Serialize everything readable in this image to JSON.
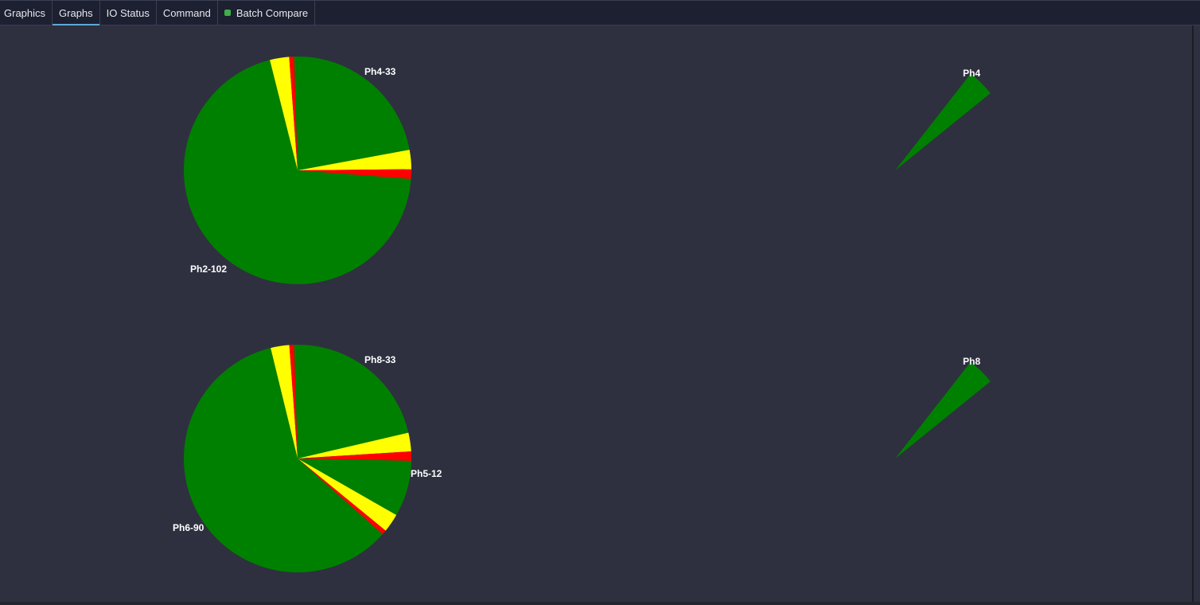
{
  "tabs": [
    {
      "label": "Graphics",
      "active": false
    },
    {
      "label": "Graphs",
      "active": true
    },
    {
      "label": "IO Status",
      "active": false
    },
    {
      "label": "Command",
      "active": false
    },
    {
      "label": "Batch Compare",
      "active": false,
      "status_dot_color": "#3fae49"
    }
  ],
  "colors": {
    "green": "#008000",
    "yellow": "#ffff00",
    "red": "#ff0000"
  },
  "chart_data": [
    {
      "type": "pie",
      "labels_shown": [
        "Ph4-33",
        "Ph2-102"
      ],
      "slices": [
        {
          "name": "Ph4-33",
          "value": 33,
          "color": "green",
          "labeled": true
        },
        {
          "name": "",
          "value": 4,
          "color": "yellow"
        },
        {
          "name": "",
          "value": 2,
          "color": "red"
        },
        {
          "name": "Ph2-102",
          "value": 102,
          "color": "green",
          "labeled": true
        },
        {
          "name": "",
          "value": 4,
          "color": "yellow"
        },
        {
          "name": "",
          "value": 1,
          "color": "red"
        }
      ]
    },
    {
      "type": "pie",
      "slices": [
        {
          "name": "Ph4",
          "value": 1,
          "color": "green",
          "labeled": true
        }
      ]
    },
    {
      "type": "pie",
      "slices": [
        {
          "name": "Ph8-33",
          "value": 33,
          "color": "green",
          "labeled": true
        },
        {
          "name": "",
          "value": 4,
          "color": "yellow"
        },
        {
          "name": "",
          "value": 2,
          "color": "red"
        },
        {
          "name": "Ph5-12",
          "value": 12,
          "color": "green",
          "labeled": true
        },
        {
          "name": "",
          "value": 4,
          "color": "yellow"
        },
        {
          "name": "",
          "value": 1,
          "color": "red"
        },
        {
          "name": "Ph6-90",
          "value": 90,
          "color": "green",
          "labeled": true
        },
        {
          "name": "",
          "value": 4,
          "color": "yellow"
        },
        {
          "name": "",
          "value": 1,
          "color": "red"
        }
      ]
    },
    {
      "type": "pie",
      "slices": [
        {
          "name": "Ph8",
          "value": 1,
          "color": "green",
          "labeled": true
        }
      ]
    }
  ]
}
